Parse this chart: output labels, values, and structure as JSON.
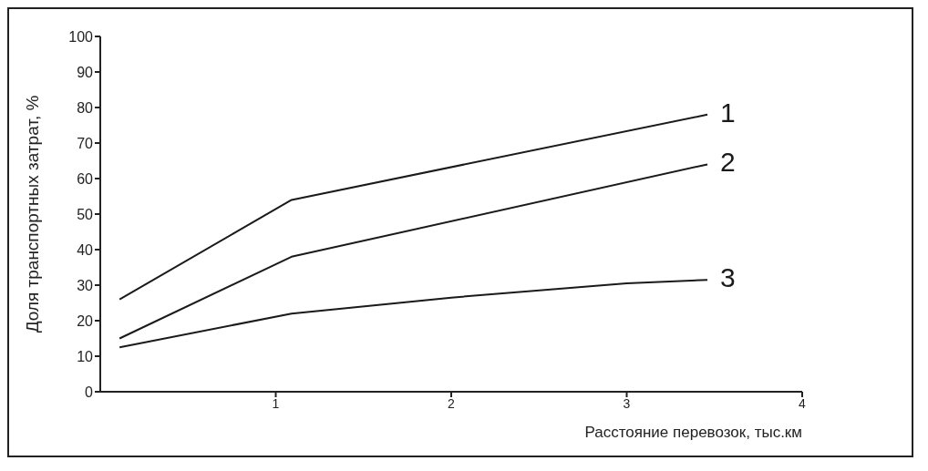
{
  "chart_data": {
    "type": "line",
    "xlabel": "Расстояние перевозок, тыс.км",
    "ylabel": "Доля транспортных затрат, %",
    "xlim": [
      0,
      4
    ],
    "xticks": [
      1,
      2,
      3,
      4
    ],
    "ylim": [
      0,
      100
    ],
    "yticks": [
      0,
      10,
      20,
      30,
      40,
      50,
      60,
      70,
      80,
      90,
      100
    ],
    "grid": false,
    "legend": false,
    "marker": "none",
    "line_style": "solid",
    "series": [
      {
        "name": "1",
        "color": "#1a1a1a",
        "x": [
          0.11,
          1.09,
          3.46
        ],
        "values": [
          26,
          54,
          78
        ]
      },
      {
        "name": "2",
        "color": "#1a1a1a",
        "x": [
          0.11,
          1.09,
          3.46
        ],
        "values": [
          15,
          38,
          64
        ]
      },
      {
        "name": "3",
        "color": "#1a1a1a",
        "x": [
          0.11,
          1.09,
          2,
          3,
          3.46
        ],
        "values": [
          12.5,
          22,
          26.5,
          30.5,
          31.5
        ]
      }
    ]
  }
}
